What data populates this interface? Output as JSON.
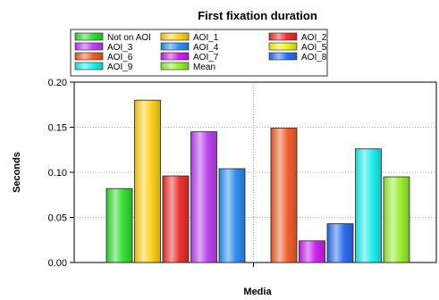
{
  "chart_data": {
    "type": "bar",
    "title": "First fixation duration",
    "xlabel": "Media",
    "ylabel": "Seconds",
    "ylim": [
      0,
      0.2
    ],
    "yticks": [
      "0.00",
      "0.05",
      "0.10",
      "0.15",
      "0.20"
    ],
    "grid": true,
    "legend_position": "top",
    "groups": [
      "",
      ""
    ],
    "series": [
      {
        "name": "Not on AOI",
        "color": "#33dd33",
        "values": [
          0.082,
          null
        ]
      },
      {
        "name": "AOI_1",
        "color": "#ffd21e",
        "values": [
          0.18,
          null
        ]
      },
      {
        "name": "AOI_2",
        "color": "#ee3030",
        "values": [
          0.096,
          null
        ]
      },
      {
        "name": "AOI_3",
        "color": "#bb44ee",
        "values": [
          0.145,
          null
        ]
      },
      {
        "name": "AOI_4",
        "color": "#2f8ef0",
        "values": [
          0.104,
          null
        ]
      },
      {
        "name": "AOI_5",
        "color": "#f2f21e",
        "values": [
          null,
          null
        ]
      },
      {
        "name": "AOI_6",
        "color": "#f0602e",
        "values": [
          null,
          0.149
        ]
      },
      {
        "name": "AOI_7",
        "color": "#cc22ee",
        "values": [
          null,
          0.024
        ]
      },
      {
        "name": "AOI_8",
        "color": "#2e6ef0",
        "values": [
          null,
          0.043
        ]
      },
      {
        "name": "AOI_9",
        "color": "#22eeee",
        "values": [
          null,
          0.126
        ]
      },
      {
        "name": "Mean",
        "color": "#99ee33",
        "values": [
          null,
          0.095
        ]
      }
    ]
  }
}
